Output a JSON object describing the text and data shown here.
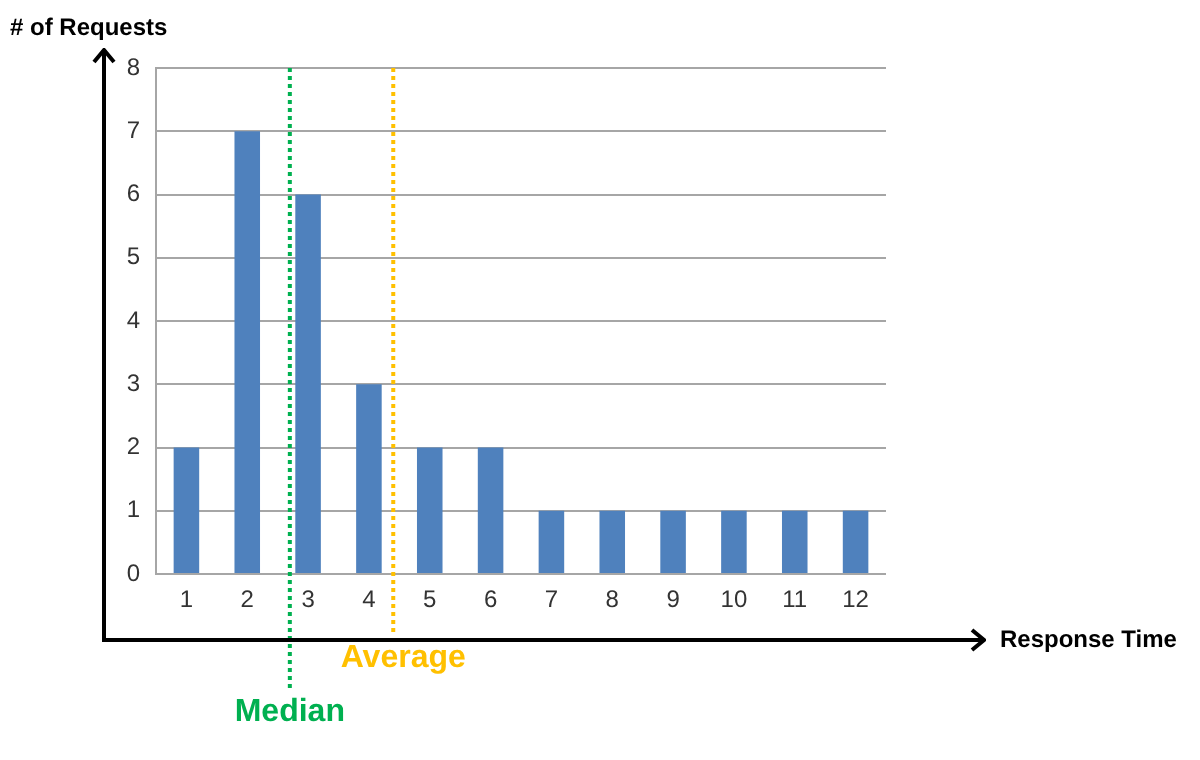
{
  "chart_data": {
    "type": "bar",
    "xlabel": "Response Time",
    "ylabel": "# of Requests",
    "x": [
      1,
      2,
      3,
      4,
      5,
      6,
      7,
      8,
      9,
      10,
      11,
      12
    ],
    "values": [
      2,
      7,
      6,
      3,
      2,
      2,
      1,
      1,
      1,
      1,
      1,
      1
    ],
    "color": "#4f81bd",
    "xlim": [
      0.5,
      12.5
    ],
    "xticks": [
      1,
      2,
      3,
      4,
      5,
      6,
      7,
      8,
      9,
      10,
      11,
      12
    ],
    "ylim": [
      0,
      8
    ],
    "yticks": [
      0,
      1,
      2,
      3,
      4,
      5,
      6,
      7,
      8
    ],
    "grid": "y",
    "legend": false,
    "ref_lines": [
      {
        "axis": "x",
        "value": 2.7,
        "label": "Median",
        "color": "#00b050",
        "line_style": "dotted"
      },
      {
        "axis": "x",
        "value": 4.4,
        "label": "Average",
        "color": "#ffc000",
        "line_style": "dotted"
      }
    ]
  }
}
